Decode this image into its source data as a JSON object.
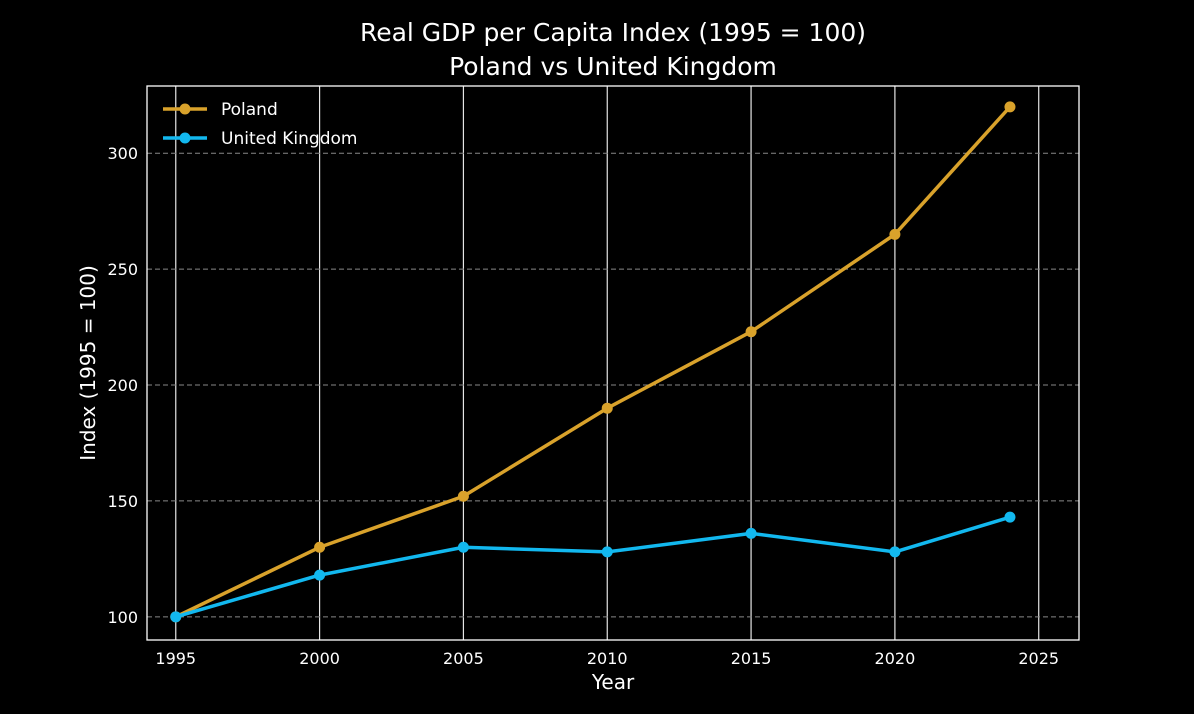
{
  "chart_data": {
    "type": "line",
    "title": "Real GDP per Capita Index (1995 = 100)",
    "subtitle": "Poland vs United Kingdom",
    "xlabel": "Year",
    "ylabel": "Index (1995 = 100)",
    "x": [
      1995,
      2000,
      2005,
      2010,
      2015,
      2020,
      2024
    ],
    "xlim": [
      1994,
      2026.4
    ],
    "ylim": [
      90,
      329
    ],
    "xticks": [
      1995,
      2000,
      2005,
      2010,
      2015,
      2020,
      2025
    ],
    "yticks": [
      100,
      150,
      200,
      250,
      300
    ],
    "grid": {
      "x": "solid",
      "y": "dashed"
    },
    "legend_position": "top-left",
    "series": [
      {
        "name": "Poland",
        "color": "#d9a22b",
        "values": [
          100,
          130,
          152,
          190,
          223,
          265,
          320
        ]
      },
      {
        "name": "United Kingdom",
        "color": "#12b8ef",
        "values": [
          100,
          118,
          130,
          128,
          136,
          128,
          143
        ]
      }
    ]
  }
}
